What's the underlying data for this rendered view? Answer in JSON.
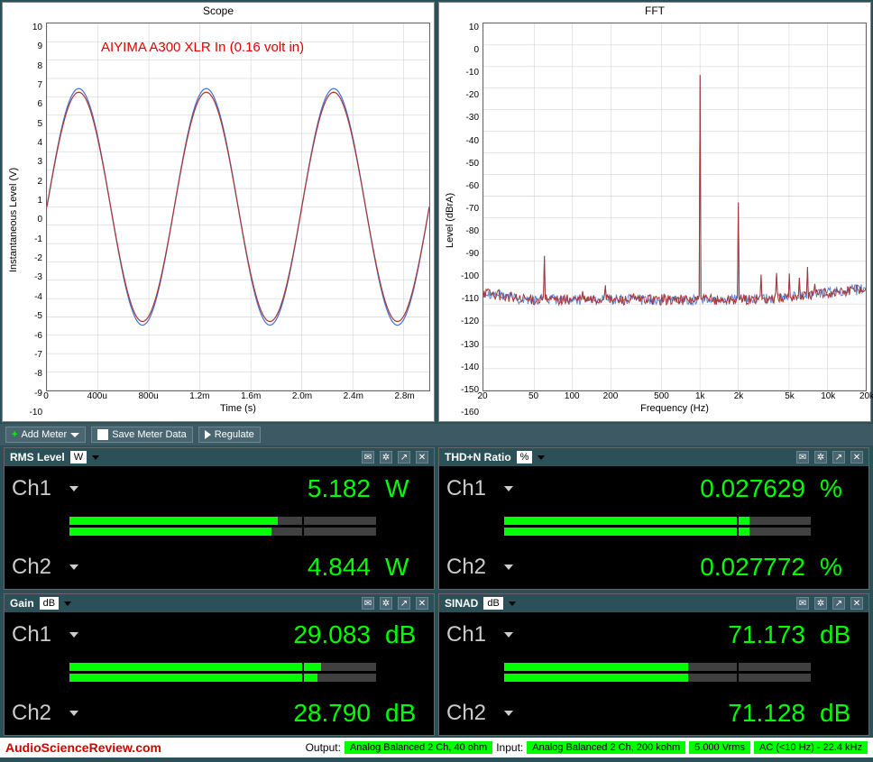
{
  "scope": {
    "title": "Scope",
    "annotation": "AIYIMA A300 XLR In (0.16 volt in)",
    "annotation_color": "#e00000",
    "xlabel": "Time (s)",
    "ylabel": "Instantaneous Level (V)",
    "ylim": [
      -10,
      10
    ],
    "ytick_step": 1,
    "xlim": [
      0,
      0.003
    ],
    "xticks": [
      "0",
      "400u",
      "800u",
      "1.2m",
      "1.6m",
      "2.0m",
      "2.4m",
      "2.8m"
    ],
    "xtick_vals": [
      0,
      0.0004,
      0.0008,
      0.0012,
      0.0016,
      0.002,
      0.0024,
      0.0028
    ],
    "signal_freq_hz": 1000,
    "amplitudes": [
      6.45,
      6.25
    ],
    "colors": [
      "#4a6fd4",
      "#a83838"
    ],
    "line_width": 1.2,
    "background_color": "#ffffff",
    "grid_color": "#cccccc"
  },
  "fft": {
    "title": "FFT",
    "xlabel": "Frequency (Hz)",
    "ylabel": "Level (dBrA)",
    "ylim": [
      -160,
      10
    ],
    "ytick_step": 10,
    "xlim": [
      20,
      20000
    ],
    "xticks": [
      "20",
      "50",
      "100",
      "200",
      "500",
      "1k",
      "2k",
      "5k",
      "10k",
      "20k"
    ],
    "xtick_vals": [
      20,
      50,
      100,
      200,
      500,
      1000,
      2000,
      5000,
      10000,
      20000
    ],
    "noise_floor_db": -118,
    "noise_jitter_db": 5,
    "fundamental_hz": 1000,
    "fundamental_db": 0,
    "harmonics": [
      {
        "hz": 2000,
        "db": -73
      },
      {
        "hz": 3000,
        "db": -94
      },
      {
        "hz": 4000,
        "db": -104
      },
      {
        "hz": 5000,
        "db": -98
      },
      {
        "hz": 6000,
        "db": -105
      },
      {
        "hz": 7000,
        "db": -100
      },
      {
        "hz": 8000,
        "db": -106
      },
      {
        "hz": 9000,
        "db": -102
      }
    ],
    "mains_spurs": [
      {
        "hz": 60,
        "db": -92
      },
      {
        "hz": 120,
        "db": -114
      },
      {
        "hz": 180,
        "db": -100
      },
      {
        "hz": 300,
        "db": -112
      }
    ],
    "hf_rise_db": -110,
    "colors": [
      "#5a88d8",
      "#a83838"
    ],
    "line_width": 1.0,
    "background_color": "#ffffff",
    "grid_color": "#cccccc"
  },
  "toolbar": {
    "add_meter": "Add Meter",
    "save_meter": "Save Meter Data",
    "regulate": "Regulate"
  },
  "meters": [
    {
      "name": "RMS Level",
      "unit_sel": "W",
      "ch1_val": "5.182",
      "ch1_unit": "W",
      "ch1_bar": 0.68,
      "ch2_val": "4.844",
      "ch2_unit": "W",
      "ch2_bar": 0.66
    },
    {
      "name": "THD+N Ratio",
      "unit_sel": "%",
      "ch1_val": "0.027629",
      "ch1_unit": "%",
      "ch1_bar": 0.8,
      "ch2_val": "0.027772",
      "ch2_unit": "%",
      "ch2_bar": 0.8
    },
    {
      "name": "Gain",
      "unit_sel": "dB",
      "ch1_val": "29.083",
      "ch1_unit": "dB",
      "ch1_bar": 0.82,
      "ch2_val": "28.790",
      "ch2_unit": "dB",
      "ch2_bar": 0.81
    },
    {
      "name": "SINAD",
      "unit_sel": "dB",
      "ch1_val": "71.173",
      "ch1_unit": "dB",
      "ch1_bar": 0.6,
      "ch2_val": "71.128",
      "ch2_unit": "dB",
      "ch2_bar": 0.6
    }
  ],
  "status": {
    "brand": "AudioScienceReview.com",
    "output_label": "Output:",
    "output_val": "Analog Balanced 2 Ch, 40 ohm",
    "input_label": "Input:",
    "input_val": "Analog Balanced 2 Ch, 200 kohm",
    "vrms": "5.000 Vrms",
    "bw": "AC (<10 Hz) - 22.4 kHz"
  },
  "colors": {
    "panel_bg": "#2b5058",
    "meter_val": "#00ff00",
    "bar_fill": "#00ff00",
    "bar_bg": "#404040"
  },
  "labels": {
    "ch1": "Ch1",
    "ch2": "Ch2"
  }
}
